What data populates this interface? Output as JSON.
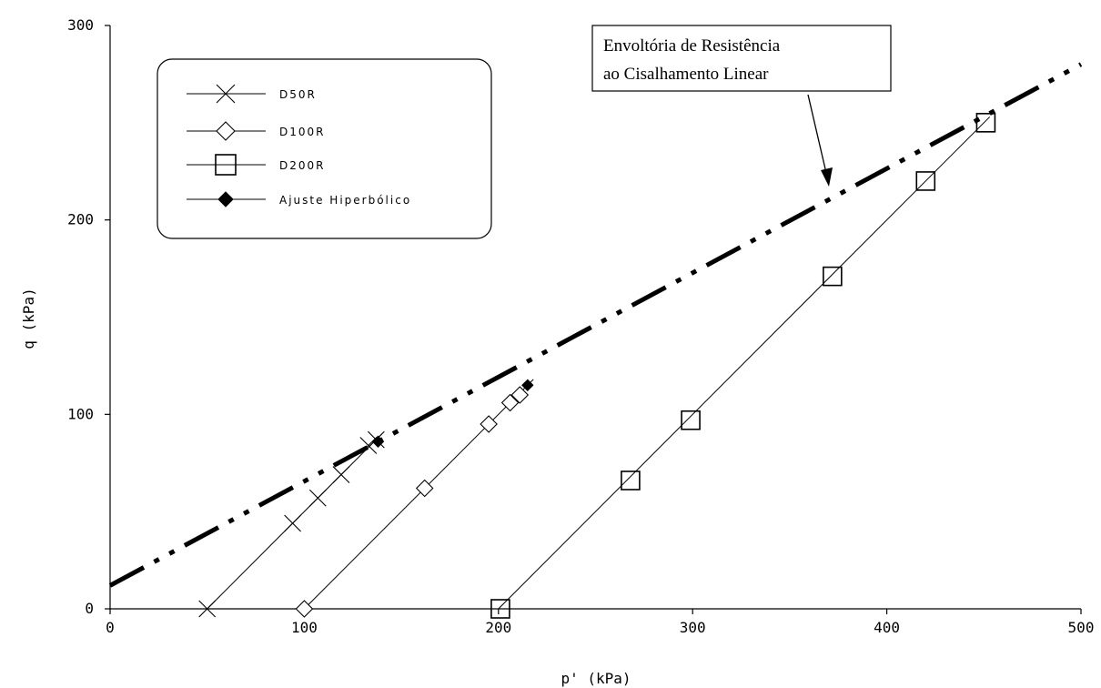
{
  "chart_data": {
    "type": "line",
    "title": "",
    "xlabel": "p' (kPa)",
    "ylabel": "q (kPa)",
    "xlim": [
      0,
      500
    ],
    "ylim": [
      0,
      300
    ],
    "x_ticks": [
      "0",
      "100",
      "200",
      "300",
      "400",
      "500"
    ],
    "y_ticks": [
      "0",
      "100",
      "200",
      "300"
    ],
    "grid": false,
    "legend_position": "top-left",
    "series": [
      {
        "name": "D50R",
        "marker": "x",
        "line_x": [
          50,
          140
        ],
        "line_y": [
          0,
          90
        ],
        "points": [
          [
            50,
            0
          ],
          [
            94,
            44
          ],
          [
            107,
            57
          ],
          [
            119,
            69
          ],
          [
            133,
            84
          ],
          [
            137,
            87
          ]
        ]
      },
      {
        "name": "D100R",
        "marker": "diamond",
        "line_x": [
          100,
          218
        ],
        "line_y": [
          0,
          118
        ],
        "points": [
          [
            100,
            0
          ],
          [
            162,
            62
          ],
          [
            195,
            95
          ],
          [
            206,
            106
          ],
          [
            211,
            110
          ]
        ]
      },
      {
        "name": "D200R",
        "marker": "square",
        "line_x": [
          200,
          453
        ],
        "line_y": [
          0,
          253
        ],
        "points": [
          [
            201,
            0
          ],
          [
            268,
            66
          ],
          [
            299,
            97
          ],
          [
            372,
            171
          ],
          [
            420,
            220
          ],
          [
            451,
            250
          ]
        ]
      },
      {
        "name": "Ajuste Hiperbólico",
        "marker": "filled-diamond",
        "points": [
          [
            138,
            86
          ],
          [
            215,
            115
          ]
        ]
      }
    ],
    "envelope": {
      "style": "dash-dot-dot",
      "x": [
        0,
        500
      ],
      "y": [
        12,
        280
      ]
    },
    "annotation": {
      "lines": [
        "Envoltória de Resistência",
        "ao Cisalhamento Linear"
      ],
      "arrow_target": [
        370,
        215
      ]
    }
  }
}
